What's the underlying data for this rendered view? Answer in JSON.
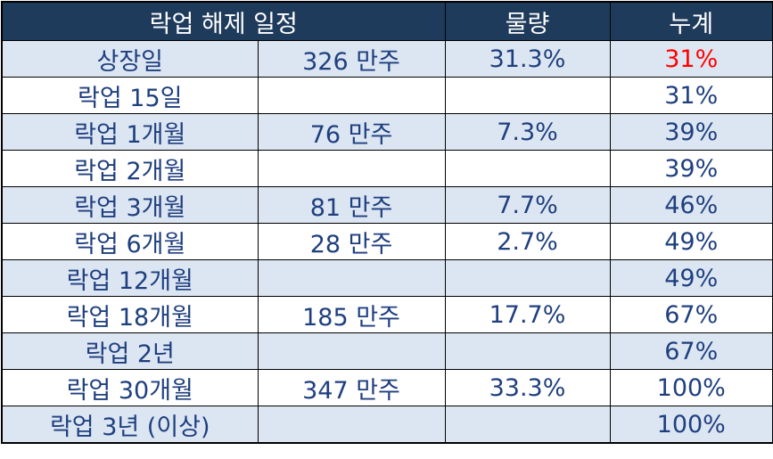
{
  "table": {
    "header": [
      "락업 해제 일정",
      "물량",
      "누계"
    ],
    "rows": [
      [
        "상장일",
        "326 만주",
        "31.3%",
        "31%"
      ],
      [
        "락업 15일",
        null,
        null,
        "31%"
      ],
      [
        "락업 1개월",
        "76 만주",
        "7.3%",
        "39%"
      ],
      [
        "락업 2개월",
        null,
        null,
        "39%"
      ],
      [
        "락업 3개월",
        "81 만주",
        "7.7%",
        "46%"
      ],
      [
        "락업 6개월",
        "28 만주",
        "2.7%",
        "49%"
      ],
      [
        "락업 12개월",
        null,
        null,
        "49%"
      ],
      [
        "락업 18개월",
        "185 만주",
        "17.7%",
        "67%"
      ],
      [
        "락업 2년",
        null,
        null,
        "67%"
      ],
      [
        "락업 30개월",
        "347 만주",
        "33.3%",
        "100%"
      ],
      [
        "락업 3년 (이상)",
        null,
        null,
        "100%"
      ]
    ]
  }
}
